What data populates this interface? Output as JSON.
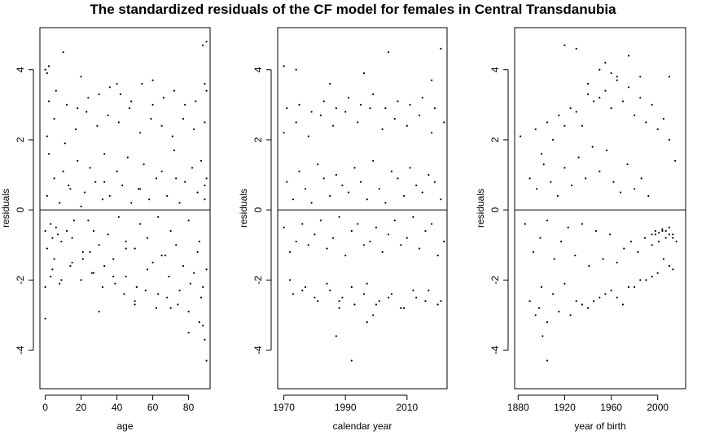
{
  "title": "The standardized residuals of the CF model for females in Central Transdanubia",
  "chart_data": [
    {
      "type": "scatter",
      "xlabel": "age",
      "ylabel": "residuals",
      "xlim": [
        -3,
        92
      ],
      "ylim": [
        -5.1,
        5.2
      ],
      "xticks": [
        0,
        20,
        40,
        60,
        80
      ],
      "yticks": [
        -4,
        -2,
        0,
        2,
        4
      ],
      "reference_line_y": 0,
      "point_color": "#000000",
      "series": [
        {
          "x": [
            0,
            1,
            1,
            2,
            3,
            4,
            5,
            6,
            7,
            8,
            9,
            10,
            12,
            14,
            15,
            16,
            18,
            20,
            21,
            22,
            24,
            25,
            27,
            28,
            30,
            32,
            33,
            35,
            36,
            38,
            40,
            41,
            43,
            45,
            46,
            48,
            50,
            52,
            53,
            55,
            57,
            58,
            60,
            62,
            63,
            65,
            67,
            68,
            70,
            72,
            73,
            75,
            77,
            78,
            80,
            82,
            83,
            85,
            86,
            87,
            88,
            89,
            90,
            90,
            1,
            3,
            5,
            8,
            11,
            14,
            17,
            20,
            23,
            26,
            29,
            32,
            35,
            38,
            41,
            44,
            47,
            50,
            53,
            56,
            59,
            62,
            65,
            68,
            71,
            74,
            77,
            80,
            83,
            86,
            89,
            0,
            2,
            4,
            6,
            9,
            12,
            15,
            18,
            21,
            24,
            27,
            30,
            33,
            36,
            39,
            42,
            45,
            48,
            51,
            54,
            57,
            60,
            63,
            66,
            69,
            72,
            75,
            78,
            81,
            84,
            87,
            90,
            2,
            10,
            20,
            30,
            40,
            50,
            60,
            70,
            80,
            88,
            5,
            25,
            45,
            65,
            85,
            13,
            33,
            53,
            73,
            89,
            0,
            0,
            1,
            88,
            89,
            89,
            90,
            90
          ],
          "y": [
            -0.6,
            0.4,
            -1.1,
            1.6,
            -0.4,
            -0.8,
            0.9,
            -0.5,
            -0.7,
            0.2,
            -0.9,
            1.1,
            -0.6,
            0.6,
            -0.8,
            -0.3,
            1.4,
            0.1,
            -1.2,
            0.5,
            -0.3,
            1.2,
            -0.6,
            0.8,
            -1.0,
            0.3,
            1.6,
            -0.7,
            0.4,
            -1.4,
            1.1,
            -0.2,
            0.7,
            -0.9,
            1.5,
            0.2,
            -1.1,
            0.6,
            -0.4,
            1.3,
            -0.8,
            0.3,
            -1.5,
            0.9,
            -0.2,
            1.1,
            -1.3,
            0.4,
            -0.6,
            1.7,
            -1.0,
            0.2,
            -1.6,
            0.8,
            -0.3,
            1.2,
            -1.8,
            0.5,
            -0.9,
            1.4,
            -2.2,
            0.3,
            -1.7,
            0.9,
            2.1,
            -1.9,
            2.6,
            -2.1,
            1.9,
            -1.6,
            2.3,
            -2.0,
            2.8,
            -1.8,
            2.4,
            -2.2,
            2.7,
            -1.9,
            2.5,
            -2.4,
            2.9,
            -2.6,
            2.2,
            -2.3,
            2.6,
            -2.8,
            2.4,
            -2.5,
            2.1,
            -2.7,
            2.6,
            -2.9,
            2.3,
            -3.2,
            2.5,
            -2.2,
            3.1,
            -1.7,
            3.4,
            -2.0,
            3.0,
            -1.5,
            2.9,
            -1.4,
            3.2,
            -1.8,
            3.3,
            -1.6,
            3.5,
            -2.1,
            3.3,
            -1.9,
            3.1,
            -2.2,
            3.6,
            -1.7,
            3.0,
            -2.4,
            3.2,
            -1.9,
            3.4,
            -2.3,
            3.0,
            -2.1,
            3.1,
            -2.5,
            3.4,
            4.1,
            4.5,
            3.8,
            -2.9,
            3.6,
            -2.7,
            3.7,
            -2.8,
            -3.5,
            4.7,
            -1.4,
            -1.2,
            -1.1,
            -1.3,
            -1.2,
            0.7,
            0.8,
            0.6,
            0.9,
            0.7,
            4.0,
            -3.1,
            3.9,
            -3.3,
            3.6,
            -3.7,
            4.8,
            -4.3
          ]
        }
      ]
    },
    {
      "type": "scatter",
      "xlabel": "calendar year",
      "ylabel": "residuals",
      "xlim": [
        1968,
        2023
      ],
      "ylim": [
        -5.1,
        5.2
      ],
      "xticks": [
        1970,
        1990,
        2010
      ],
      "yticks": [
        -4,
        -2,
        0,
        2,
        4
      ],
      "reference_line_y": 0,
      "point_color": "#000000",
      "series": [
        {
          "x": [
            1970,
            1971,
            1972,
            1973,
            1974,
            1975,
            1976,
            1977,
            1978,
            1979,
            1980,
            1981,
            1982,
            1983,
            1984,
            1985,
            1986,
            1987,
            1988,
            1989,
            1990,
            1991,
            1992,
            1993,
            1994,
            1995,
            1996,
            1997,
            1998,
            1999,
            2000,
            2001,
            2002,
            2003,
            2004,
            2005,
            2006,
            2007,
            2008,
            2009,
            2010,
            2011,
            2012,
            2013,
            2014,
            2015,
            2016,
            2017,
            2018,
            2019,
            2020,
            2021,
            2022,
            1970,
            1972,
            1974,
            1976,
            1978,
            1980,
            1982,
            1984,
            1986,
            1988,
            1990,
            1992,
            1994,
            1996,
            1998,
            2000,
            2002,
            2004,
            2006,
            2008,
            2010,
            2012,
            2014,
            2016,
            2018,
            2020,
            2022,
            1971,
            1973,
            1975,
            1977,
            1979,
            1981,
            1983,
            1985,
            1987,
            1989,
            1991,
            1993,
            1995,
            1997,
            1999,
            2001,
            2003,
            2005,
            2007,
            2009,
            2011,
            2013,
            2015,
            2017,
            2019,
            2021,
            1970,
            1974,
            1985,
            1988,
            1996,
            1999,
            2004,
            2018,
            2021,
            1987,
            1992,
            1997
          ],
          "y": [
            -0.5,
            0.8,
            -1.2,
            0.3,
            -0.9,
            1.1,
            -0.4,
            0.6,
            -1.0,
            0.2,
            -0.7,
            1.3,
            -0.3,
            0.9,
            -1.1,
            0.4,
            -0.8,
            1.0,
            -0.2,
            0.7,
            -1.3,
            0.5,
            -0.6,
            1.2,
            -0.4,
            0.8,
            -1.0,
            0.3,
            -0.9,
            1.4,
            -0.5,
            0.6,
            -1.2,
            0.2,
            -0.7,
            1.1,
            -0.3,
            0.9,
            -1.0,
            0.4,
            -0.8,
            1.2,
            -0.2,
            0.7,
            -1.1,
            0.5,
            -0.6,
            1.0,
            -0.4,
            0.8,
            -1.3,
            0.3,
            -0.9,
            2.2,
            -2.0,
            2.5,
            -2.3,
            2.1,
            -2.5,
            2.7,
            -2.1,
            2.4,
            -2.6,
            2.8,
            -2.2,
            2.5,
            -2.4,
            2.9,
            -2.7,
            2.3,
            -2.5,
            2.6,
            -2.8,
            2.4,
            -2.3,
            2.7,
            -2.6,
            2.2,
            -2.7,
            2.5,
            2.9,
            -2.4,
            3.0,
            -2.2,
            2.8,
            -2.6,
            3.1,
            -2.3,
            2.9,
            -2.5,
            3.2,
            -2.7,
            3.0,
            -2.1,
            3.3,
            -2.6,
            2.9,
            -2.4,
            3.1,
            -2.8,
            3.0,
            -2.5,
            3.2,
            -2.3,
            2.9,
            -2.6,
            4.1,
            4.0,
            3.6,
            -2.8,
            3.9,
            -3.0,
            4.5,
            3.7,
            4.6,
            -3.6,
            -4.3,
            -3.2
          ]
        }
      ]
    },
    {
      "type": "scatter",
      "xlabel": "year of birth",
      "ylabel": "residuals",
      "xlim": [
        1877,
        2024
      ],
      "ylim": [
        -5.1,
        5.2
      ],
      "xticks": [
        1880,
        1920,
        1960,
        2000
      ],
      "yticks": [
        -4,
        -2,
        0,
        2,
        4
      ],
      "reference_line_y": 0,
      "point_color": "#000000",
      "series": [
        {
          "x": [
            1882,
            1886,
            1890,
            1893,
            1896,
            1899,
            1902,
            1905,
            1908,
            1911,
            1914,
            1917,
            1920,
            1923,
            1926,
            1929,
            1932,
            1935,
            1938,
            1941,
            1944,
            1947,
            1950,
            1953,
            1956,
            1959,
            1962,
            1965,
            1968,
            1971,
            1974,
            1977,
            1980,
            1983,
            1986,
            1989,
            1992,
            1995,
            1998,
            2001,
            2004,
            2007,
            2010,
            2013,
            2016,
            1890,
            1895,
            1900,
            1905,
            1910,
            1915,
            1920,
            1925,
            1930,
            1935,
            1940,
            1945,
            1950,
            1955,
            1960,
            1965,
            1970,
            1975,
            1980,
            1985,
            1990,
            1995,
            2000,
            2005,
            2010,
            1895,
            1900,
            1905,
            1910,
            1915,
            1920,
            1925,
            1930,
            1935,
            1940,
            1945,
            1950,
            1955,
            1960,
            1965,
            1970,
            1975,
            1980,
            1985,
            1990,
            1995,
            2000,
            2005,
            2010,
            2015,
            1995,
            1998,
            2001,
            2004,
            2007,
            2010,
            2013,
            1898,
            1901,
            1905,
            1920,
            1930,
            1940,
            1950,
            1955,
            1960,
            1965,
            1975,
            1985,
            2010,
            2013
          ],
          "y": [
            2.1,
            -0.4,
            0.9,
            -1.2,
            0.6,
            -0.8,
            1.3,
            -0.3,
            0.8,
            -1.4,
            0.4,
            -0.9,
            1.2,
            -0.5,
            0.7,
            -1.3,
            1.5,
            -0.4,
            0.9,
            -1.6,
            1.8,
            -0.6,
            1.1,
            -1.4,
            1.7,
            -0.7,
            0.8,
            -1.5,
            0.5,
            -1.1,
            1.3,
            -0.9,
            0.6,
            -1.2,
            0.9,
            -0.8,
            0.4,
            -1.0,
            -0.7,
            -0.9,
            -0.6,
            -0.8,
            -0.5,
            -0.7,
            -0.9,
            -2.6,
            2.3,
            -2.2,
            2.5,
            -2.4,
            2.7,
            -2.1,
            2.9,
            -2.6,
            2.4,
            -2.8,
            3.1,
            -2.5,
            3.4,
            -2.3,
            3.8,
            -2.7,
            3.5,
            -2.2,
            3.2,
            -2.0,
            3.0,
            -1.8,
            2.6,
            -1.6,
            -3.0,
            1.6,
            -3.2,
            2.0,
            -2.9,
            2.4,
            -3.0,
            2.8,
            -2.7,
            3.3,
            -2.6,
            3.2,
            -2.4,
            2.9,
            -2.5,
            3.1,
            -2.2,
            2.7,
            -2.0,
            2.5,
            -1.9,
            2.3,
            -1.4,
            2.0,
            1.4,
            -0.7,
            -0.6,
            -0.65,
            -0.55,
            -0.6,
            -0.7,
            -0.8,
            -2.8,
            -3.6,
            -4.3,
            4.7,
            4.6,
            3.6,
            4.0,
            4.2,
            3.9,
            3.7,
            4.4,
            3.8,
            3.8,
            -1.7
          ]
        }
      ]
    }
  ]
}
